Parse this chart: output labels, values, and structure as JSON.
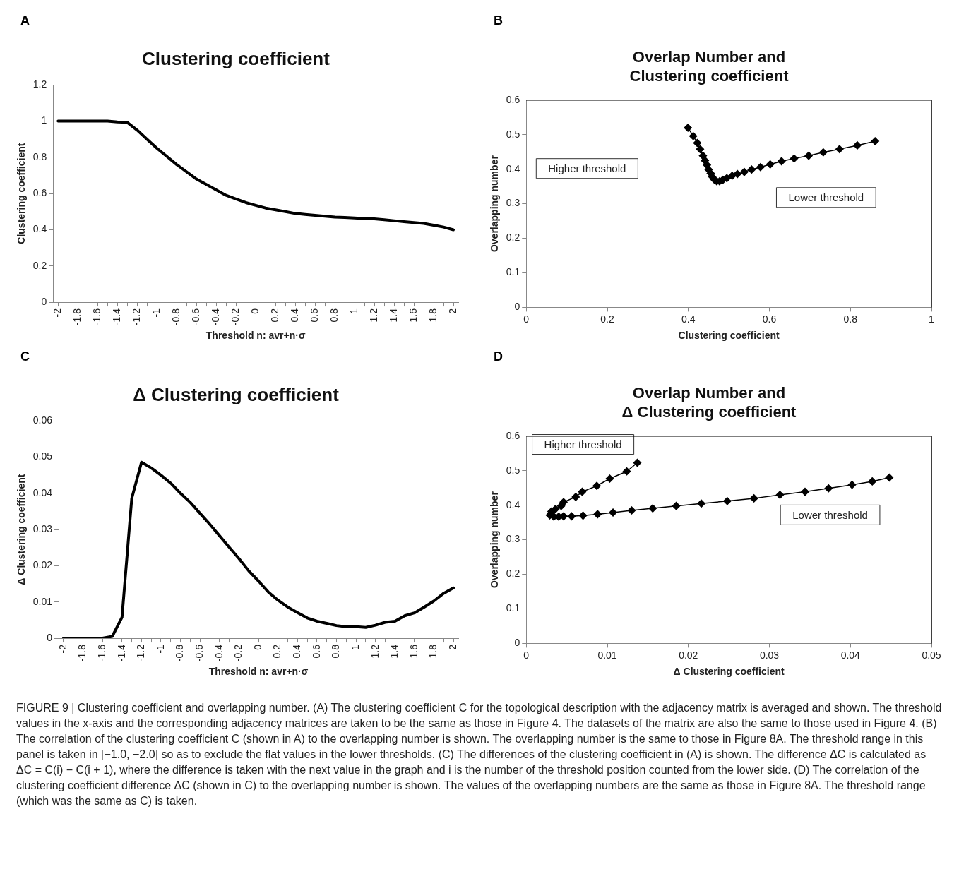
{
  "chart_data": [
    {
      "type": "line",
      "title": "Clustering coefficient",
      "xlabel": "Threshold n: avr+n·σ",
      "ylabel": "Clustering coefficient",
      "annotations": [
        "A"
      ],
      "categories": [
        "-2",
        null,
        "-1.8",
        null,
        "-1.6",
        null,
        "-1.4",
        null,
        "-1.2",
        null,
        "-1",
        null,
        "-0.8",
        null,
        "-0.6",
        null,
        "-0.4",
        null,
        "-0.2",
        null,
        "0",
        null,
        "0.2",
        null,
        "0.4",
        null,
        "0.6",
        null,
        "0.8",
        null,
        "1",
        null,
        "1.2",
        null,
        "1.4",
        null,
        "1.6",
        null,
        "1.8",
        null,
        "2"
      ],
      "series": [
        {
          "color": "#000000",
          "values": [
            1,
            1,
            1,
            1,
            1,
            1,
            0.995,
            0.993,
            0.95,
            0.9,
            0.85,
            0.805,
            0.76,
            0.72,
            0.68,
            0.65,
            0.62,
            0.59,
            0.57,
            0.55,
            0.535,
            0.52,
            0.51,
            0.5,
            0.49,
            0.485,
            0.48,
            0.475,
            0.47,
            0.468,
            0.465,
            0.462,
            0.46,
            0.455,
            0.45,
            0.445,
            0.44,
            0.435,
            0.425,
            0.415,
            0.4
          ]
        }
      ],
      "ylim": [
        0,
        1.2
      ],
      "yticks": [
        0,
        0.2,
        0.4,
        0.6,
        0.8,
        1,
        1.2
      ],
      "grid": false,
      "legend": false,
      "marker": "none",
      "line_style": "solid"
    },
    {
      "type": "line",
      "title": "Overlap Number and\nClustering coefficient",
      "xlabel": "Clustering coefficient",
      "ylabel": "Overlapping number",
      "annotations": [
        "B",
        "Higher threshold",
        "Lower threshold"
      ],
      "series": [
        {
          "color": "#000000",
          "x": [
            0.399,
            0.412,
            0.422,
            0.429,
            0.436,
            0.441,
            0.446,
            0.45,
            0.455,
            0.459,
            0.464,
            0.47,
            0.477,
            0.485,
            0.495,
            0.508,
            0.521,
            0.538,
            0.556,
            0.578,
            0.602,
            0.63,
            0.661,
            0.697,
            0.733,
            0.773,
            0.817,
            0.861
          ],
          "values": [
            0.52,
            0.496,
            0.476,
            0.458,
            0.439,
            0.425,
            0.412,
            0.399,
            0.388,
            0.378,
            0.37,
            0.365,
            0.365,
            0.369,
            0.374,
            0.381,
            0.386,
            0.392,
            0.399,
            0.406,
            0.414,
            0.423,
            0.431,
            0.439,
            0.449,
            0.458,
            0.469,
            0.481
          ]
        }
      ],
      "xlim": [
        0,
        1
      ],
      "xticks": [
        0,
        0.2,
        0.4,
        0.6,
        0.8,
        1
      ],
      "ylim": [
        0,
        0.6
      ],
      "yticks": [
        0,
        0.1,
        0.2,
        0.3,
        0.4,
        0.5,
        0.6
      ],
      "grid": false,
      "legend": false,
      "marker": "diamond",
      "line_style": "solid"
    },
    {
      "type": "line",
      "title": "Δ Clustering coefficient",
      "xlabel": "Threshold n: avr+n·σ",
      "ylabel": "Δ Clustering coefficient",
      "annotations": [
        "C"
      ],
      "categories": [
        "-2",
        null,
        "-1.8",
        null,
        "-1.6",
        null,
        "-1.4",
        null,
        "-1.2",
        null,
        "-1",
        null,
        "-0.8",
        null,
        "-0.6",
        null,
        "-0.4",
        null,
        "-0.2",
        null,
        "0",
        null,
        "0.2",
        null,
        "0.4",
        null,
        "0.6",
        null,
        "0.8",
        null,
        "1",
        null,
        "1.2",
        null,
        "1.4",
        null,
        "1.6",
        null,
        "1.8",
        null,
        "2"
      ],
      "series": [
        {
          "color": "#000000",
          "values": [
            0,
            0,
            0,
            0,
            0,
            0.0005,
            0.0058,
            0.0386,
            0.0486,
            0.047,
            0.045,
            0.0428,
            0.04,
            0.0375,
            0.0345,
            0.0315,
            0.0283,
            0.0251,
            0.022,
            0.0186,
            0.0158,
            0.0128,
            0.0105,
            0.0086,
            0.0071,
            0.0056,
            0.0047,
            0.0041,
            0.0035,
            0.0032,
            0.0032,
            0.003,
            0.0036,
            0.0044,
            0.0047,
            0.0062,
            0.007,
            0.0086,
            0.0103,
            0.0124,
            0.0139
          ]
        }
      ],
      "ylim": [
        0,
        0.06
      ],
      "yticks": [
        0,
        0.01,
        0.02,
        0.03,
        0.04,
        0.05,
        0.06
      ],
      "grid": false,
      "legend": false,
      "marker": "none",
      "line_style": "solid"
    },
    {
      "type": "line",
      "title": "Overlap Number and\nΔ Clustering coefficient",
      "xlabel": "Δ Clustering coefficient",
      "ylabel": "Overlapping number",
      "annotations": [
        "D",
        "Higher threshold",
        "Lower threshold",
        "FIGURE 9 | Clustering coefficient and overlapping number. (A) The clustering coefficient C for the topological description with the adjacency matrix is averaged and shown. The threshold values in the x-axis and the corresponding adjacency matrices are taken to be the same as those in Figure 4. The datasets of the matrix are also the same to those used in Figure 4. (B) The correlation of the clustering coefficient C (shown in A) to the overlapping number is shown. The overlapping number is the same to those in Figure 8A. The threshold range in this panel is taken in [−1.0, −2.0] so as to exclude the flat values in the lower thresholds. (C) The differences of the clustering coefficient in (A) is shown. The difference ΔC is calculated as ΔC = C(i) − C(i + 1), where the difference is taken with the next value in the graph and i is the number of the threshold position counted from the lower side. (D) The correlation of the clustering coefficient difference ΔC (shown in C) to the overlapping number is shown. The values of the overlapping numbers are the same as those in Figure 8A. The threshold range (which was the same as C) is taken."
      ],
      "series": [
        {
          "color": "#000000",
          "x": [
            0.0137,
            0.0124,
            0.0103,
            0.0087,
            0.0069,
            0.0061,
            0.0046,
            0.0043,
            0.0036,
            0.0031,
            0.0029,
            0.0034,
            0.004,
            0.0046,
            0.0056,
            0.007,
            0.0088,
            0.0107,
            0.013,
            0.0156,
            0.0185,
            0.0216,
            0.0248,
            0.0281,
            0.0313,
            0.0344,
            0.0373,
            0.0402,
            0.0427,
            0.0448
          ],
          "values": [
            0.523,
            0.498,
            0.477,
            0.456,
            0.439,
            0.424,
            0.409,
            0.398,
            0.389,
            0.382,
            0.371,
            0.367,
            0.367,
            0.368,
            0.368,
            0.37,
            0.374,
            0.379,
            0.385,
            0.391,
            0.398,
            0.405,
            0.412,
            0.42,
            0.43,
            0.439,
            0.449,
            0.459,
            0.469,
            0.48
          ]
        }
      ],
      "xlim": [
        0,
        0.05
      ],
      "xticks": [
        0,
        0.01,
        0.02,
        0.03,
        0.04,
        0.05
      ],
      "ylim": [
        0,
        0.6
      ],
      "yticks": [
        0,
        0.1,
        0.2,
        0.3,
        0.4,
        0.5,
        0.6
      ],
      "grid": false,
      "legend": false,
      "marker": "diamond",
      "line_style": "solid"
    }
  ]
}
